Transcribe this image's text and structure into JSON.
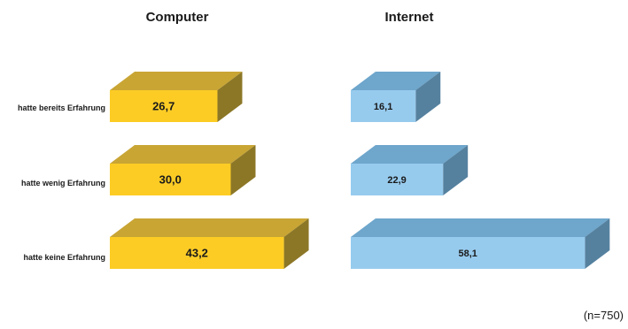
{
  "chart_data": {
    "type": "bar",
    "orientation": "horizontal",
    "style": "3d",
    "categories": [
      "hatte bereits Erfahrung",
      "hatte wenig Erfahrung",
      "hatte keine Erfahrung"
    ],
    "panels": [
      {
        "title": "Computer",
        "values": [
          26.7,
          30.0,
          43.2
        ],
        "value_labels": [
          "26,7",
          "30,0",
          "43,2"
        ],
        "colors": {
          "front": "#fccc25",
          "top": "#c9a534",
          "side": "#8c7727"
        }
      },
      {
        "title": "Internet",
        "values": [
          16.1,
          22.9,
          58.1
        ],
        "value_labels": [
          "16,1",
          "22,9",
          "58,1"
        ],
        "colors": {
          "front": "#97cbee",
          "top": "#6ea6cc",
          "side": "#55819f"
        }
      }
    ],
    "xlim": [
      0,
      60
    ],
    "grid": false,
    "legend": "none",
    "note": "(n=750)"
  }
}
